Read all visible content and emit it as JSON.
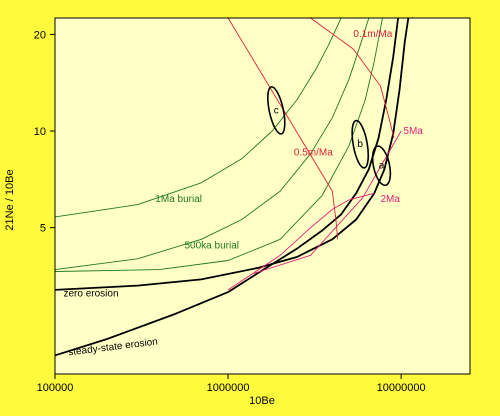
{
  "chart_data": {
    "type": "line",
    "title": "",
    "xlabel": "10Be",
    "ylabel": "21Ne / 10Be",
    "x_scale": "log",
    "y_scale": "log",
    "xlim": [
      100000,
      25000000
    ],
    "ylim": [
      1.75,
      22.5
    ],
    "x_ticks": [
      {
        "value": 100000,
        "label": "100000"
      },
      {
        "value": 1000000,
        "label": "1000000"
      },
      {
        "value": 10000000,
        "label": "10000000"
      }
    ],
    "y_ticks": [
      {
        "value": 5,
        "label": "5"
      },
      {
        "value": 10,
        "label": "10"
      },
      {
        "value": 20,
        "label": "20"
      }
    ],
    "grid": false,
    "legend": "none",
    "colors": {
      "background": "#fffb3c",
      "plot_area": "#ffffc6",
      "erosion_lines": "#000000",
      "burial_isochrons": "#1f7a1f",
      "erosion_rate_lines": "#e0203a",
      "time_lines": "#e0207a"
    },
    "series": [
      {
        "name": "zero erosion",
        "color": "#000000",
        "width": 1.8,
        "points": [
          [
            100000,
            3.2
          ],
          [
            300000,
            3.3
          ],
          [
            700000,
            3.45
          ],
          [
            1500000,
            3.75
          ],
          [
            2500000,
            4.05
          ],
          [
            4000000,
            4.6
          ],
          [
            5500000,
            5.3
          ],
          [
            7000000,
            6.4
          ],
          [
            8000000,
            7.6
          ],
          [
            9000000,
            9.8
          ],
          [
            9800000,
            13.5
          ],
          [
            10500000,
            19.0
          ],
          [
            11000000,
            22.5
          ]
        ]
      },
      {
        "name": "steady-state erosion",
        "color": "#000000",
        "width": 1.8,
        "points": [
          [
            100000,
            2.0
          ],
          [
            200000,
            2.25
          ],
          [
            500000,
            2.7
          ],
          [
            1000000,
            3.15
          ],
          [
            1600000,
            3.7
          ],
          [
            2500000,
            4.3
          ],
          [
            3500000,
            4.9
          ],
          [
            4500000,
            5.5
          ],
          [
            5500000,
            6.4
          ],
          [
            6500000,
            7.6
          ],
          [
            7400000,
            9.5
          ],
          [
            8200000,
            12.5
          ],
          [
            9000000,
            17.0
          ],
          [
            9600000,
            22.5
          ]
        ]
      },
      {
        "name": "1Ma burial",
        "color": "#1f7a1f",
        "width": 0.9,
        "points": [
          [
            100000,
            5.4
          ],
          [
            300000,
            5.9
          ],
          [
            700000,
            6.9
          ],
          [
            1200000,
            8.2
          ],
          [
            1800000,
            10.0
          ],
          [
            2500000,
            12.5
          ],
          [
            3200000,
            15.5
          ],
          [
            3800000,
            18.5
          ],
          [
            4500000,
            22.5
          ]
        ]
      },
      {
        "name": "500ka burial",
        "color": "#1f7a1f",
        "width": 0.9,
        "points": [
          [
            100000,
            3.7
          ],
          [
            300000,
            4.0
          ],
          [
            700000,
            4.6
          ],
          [
            1200000,
            5.3
          ],
          [
            2000000,
            6.5
          ],
          [
            3000000,
            8.5
          ],
          [
            4000000,
            11.0
          ],
          [
            5000000,
            14.5
          ],
          [
            5800000,
            18.5
          ],
          [
            6500000,
            22.5
          ]
        ]
      },
      {
        "name": "",
        "color": "#1f7a1f",
        "width": 0.9,
        "points": [
          [
            100000,
            3.65
          ],
          [
            400000,
            3.7
          ],
          [
            1000000,
            3.95
          ],
          [
            2000000,
            4.6
          ],
          [
            3500000,
            6.3
          ],
          [
            5000000,
            9.0
          ],
          [
            6200000,
            12.5
          ],
          [
            7000000,
            16.5
          ],
          [
            7800000,
            22.5
          ]
        ]
      },
      {
        "name": "0.1m/Ma",
        "color": "#e0203a",
        "width": 0.9,
        "points": [
          [
            3000000,
            22.5
          ],
          [
            5300000,
            18.0
          ],
          [
            7600000,
            13.8
          ],
          [
            8500000,
            11.0
          ],
          [
            9100000,
            9.5
          ]
        ]
      },
      {
        "name": "0.5m/Ma",
        "color": "#e0203a",
        "width": 0.9,
        "points": [
          [
            1000000,
            22.5
          ],
          [
            4000000,
            6.5
          ],
          [
            4200000,
            5.3
          ],
          [
            4300000,
            4.6
          ]
        ]
      },
      {
        "name": "5Ma",
        "color": "#e0207a",
        "width": 0.9,
        "points": [
          [
            1400000,
            3.6
          ],
          [
            3000000,
            4.1
          ],
          [
            6000000,
            6.2
          ],
          [
            10000000,
            10.0
          ]
        ]
      },
      {
        "name": "2Ma",
        "color": "#e0207a",
        "width": 0.9,
        "points": [
          [
            1000000,
            3.2
          ],
          [
            2000000,
            4.1
          ],
          [
            3000000,
            5.0
          ],
          [
            4000000,
            5.7
          ],
          [
            5000000,
            6.1
          ],
          [
            7000000,
            6.4
          ]
        ]
      }
    ],
    "samples": [
      {
        "label": "a",
        "x": 7700000,
        "y": 7.8,
        "rx": 8,
        "ry": 20,
        "rotate": -12
      },
      {
        "label": "b",
        "x": 5800000,
        "y": 9.1,
        "rx": 7,
        "ry": 24,
        "rotate": -10
      },
      {
        "label": "c",
        "x": 1900000,
        "y": 11.6,
        "rx": 7,
        "ry": 24,
        "rotate": -12
      }
    ],
    "annotations": [
      {
        "text": "zero erosion",
        "x": 112000,
        "y": 3.05,
        "color": "#000000",
        "rotate": 0
      },
      {
        "text": "steady-state erosion",
        "x": 120000,
        "y": 2.0,
        "color": "#000000",
        "rotate": -7
      },
      {
        "text": "1Ma burial",
        "x": 380000,
        "y": 6.0,
        "color": "#1f7a1f",
        "rotate": 0
      },
      {
        "text": "500ka burial",
        "x": 560000,
        "y": 4.3,
        "color": "#1f7a1f",
        "rotate": 0
      },
      {
        "text": "0.1m/Ma",
        "x": 5300000,
        "y": 19.6,
        "color": "#e0203a",
        "rotate": 0
      },
      {
        "text": "0.5m/Ma",
        "x": 2400000,
        "y": 8.4,
        "color": "#e0203a",
        "rotate": 0
      },
      {
        "text": "5Ma",
        "x": 10300000,
        "y": 9.8,
        "color": "#e0207a",
        "rotate": 0
      },
      {
        "text": "2Ma",
        "x": 7600000,
        "y": 6.0,
        "color": "#e0207a",
        "rotate": 0
      }
    ]
  }
}
